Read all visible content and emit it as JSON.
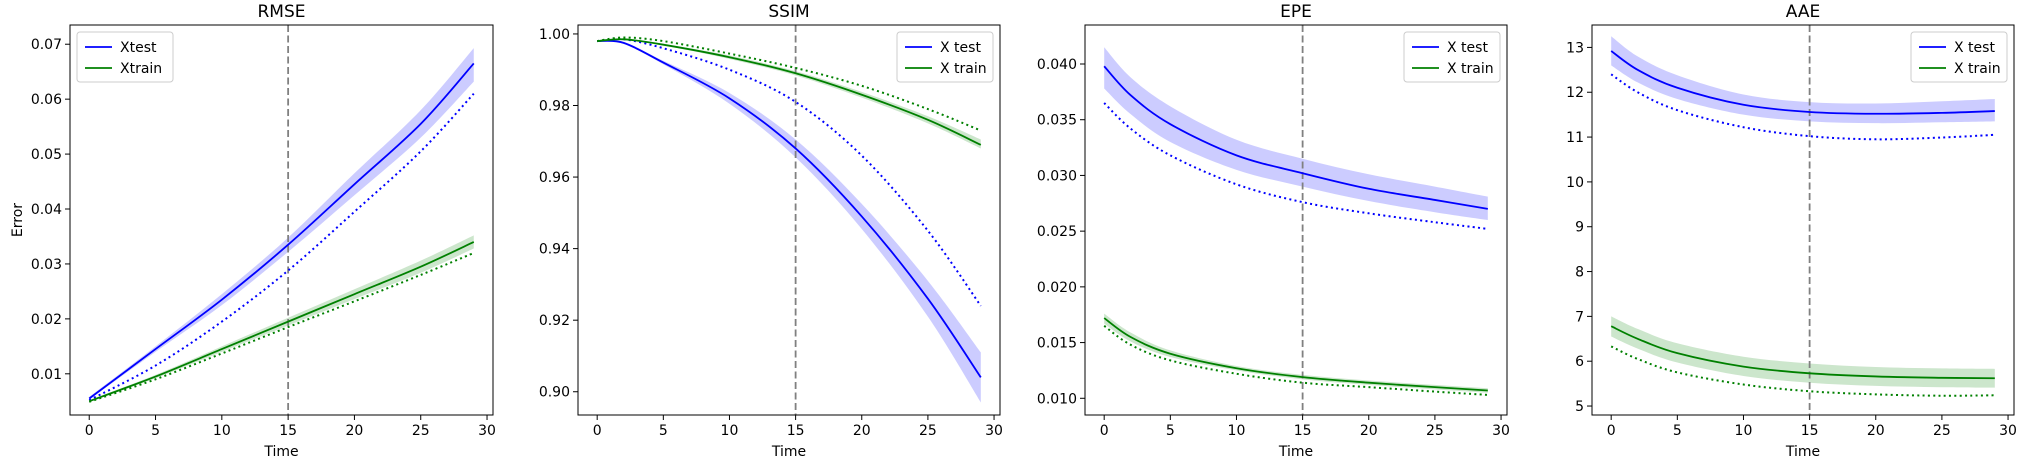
{
  "chart_data": [
    {
      "type": "line",
      "title": "RMSE",
      "xlabel": "Time",
      "ylabel": "Error",
      "xlim": [
        -1.45,
        30.45
      ],
      "ylim": [
        0.0025,
        0.0735
      ],
      "xticks": [
        0,
        5,
        10,
        15,
        20,
        25,
        30
      ],
      "yticks": [
        0.01,
        0.02,
        0.03,
        0.04,
        0.05,
        0.06,
        0.07
      ],
      "ytick_labels": [
        "0.01",
        "0.02",
        "0.03",
        "0.04",
        "0.05",
        "0.06",
        "0.07"
      ],
      "vline_x": 15,
      "legend": {
        "position": "top-left",
        "entries": [
          "Xtest",
          "Xtrain"
        ]
      },
      "x": [
        0,
        5,
        10,
        15,
        20,
        25,
        29
      ],
      "series": [
        {
          "name": "Xtest",
          "color": "#0000ff",
          "style": "solid",
          "values": [
            0.0055,
            0.0145,
            0.0235,
            0.0335,
            0.0445,
            0.0555,
            0.0665
          ],
          "band_lower": [
            0.0053,
            0.014,
            0.0225,
            0.0322,
            0.0425,
            0.053,
            0.0632
          ],
          "band_upper": [
            0.0058,
            0.015,
            0.0245,
            0.0348,
            0.0465,
            0.058,
            0.0693
          ]
        },
        {
          "name": "Xtest (dotted)",
          "color": "#0000ff",
          "style": "dotted",
          "values": [
            0.0052,
            0.0115,
            0.0195,
            0.0288,
            0.0395,
            0.0505,
            0.061
          ]
        },
        {
          "name": "Xtrain",
          "color": "#008000",
          "style": "solid",
          "values": [
            0.005,
            0.0095,
            0.0145,
            0.0195,
            0.0245,
            0.0295,
            0.034
          ],
          "band_lower": [
            0.0049,
            0.0092,
            0.014,
            0.0188,
            0.0236,
            0.0284,
            0.0328
          ],
          "band_upper": [
            0.0052,
            0.0098,
            0.015,
            0.0202,
            0.0254,
            0.0306,
            0.0352
          ]
        },
        {
          "name": "Xtrain (dotted)",
          "color": "#008000",
          "style": "dotted",
          "values": [
            0.0049,
            0.009,
            0.0137,
            0.0185,
            0.0232,
            0.028,
            0.032
          ]
        }
      ]
    },
    {
      "type": "line",
      "title": "SSIM",
      "xlabel": "Time",
      "ylabel": "",
      "xlim": [
        -1.45,
        30.45
      ],
      "ylim": [
        0.8935,
        1.0025
      ],
      "xticks": [
        0,
        5,
        10,
        15,
        20,
        25,
        30
      ],
      "yticks": [
        0.9,
        0.92,
        0.94,
        0.96,
        0.98,
        1.0
      ],
      "ytick_labels": [
        "0.90",
        "0.92",
        "0.94",
        "0.96",
        "0.98",
        "1.00"
      ],
      "vline_x": 15,
      "legend": {
        "position": "top-right",
        "entries": [
          "X test",
          "X train"
        ]
      },
      "x": [
        0,
        2,
        5,
        10,
        15,
        20,
        25,
        29
      ],
      "series": [
        {
          "name": "X test",
          "color": "#0000ff",
          "style": "solid",
          "values": [
            0.998,
            0.9975,
            0.992,
            0.982,
            0.968,
            0.949,
            0.926,
            0.904
          ],
          "band_lower": [
            0.998,
            0.9972,
            0.9915,
            0.9805,
            0.9655,
            0.9455,
            0.921,
            0.897
          ],
          "band_upper": [
            0.998,
            0.9978,
            0.9925,
            0.9835,
            0.9705,
            0.9525,
            0.931,
            0.911
          ]
        },
        {
          "name": "X test (dotted)",
          "color": "#0000ff",
          "style": "dotted",
          "values": [
            0.998,
            0.9985,
            0.996,
            0.99,
            0.981,
            0.966,
            0.945,
            0.924
          ]
        },
        {
          "name": "X train",
          "color": "#008000",
          "style": "solid",
          "values": [
            0.998,
            0.9985,
            0.997,
            0.9935,
            0.989,
            0.983,
            0.976,
            0.969
          ],
          "band_lower": [
            0.998,
            0.9984,
            0.9968,
            0.993,
            0.9884,
            0.9822,
            0.975,
            0.968
          ],
          "band_upper": [
            0.998,
            0.9986,
            0.9972,
            0.994,
            0.9896,
            0.9838,
            0.977,
            0.9705
          ]
        },
        {
          "name": "X train (dotted)",
          "color": "#008000",
          "style": "dotted",
          "values": [
            0.998,
            0.999,
            0.998,
            0.9945,
            0.9905,
            0.9855,
            0.979,
            0.973
          ]
        }
      ]
    },
    {
      "type": "line",
      "title": "EPE",
      "xlabel": "Time",
      "ylabel": "",
      "xlim": [
        -1.45,
        30.45
      ],
      "ylim": [
        0.0085,
        0.0435
      ],
      "xticks": [
        0,
        5,
        10,
        15,
        20,
        25,
        30
      ],
      "yticks": [
        0.01,
        0.015,
        0.02,
        0.025,
        0.03,
        0.035,
        0.04
      ],
      "ytick_labels": [
        "0.010",
        "0.015",
        "0.020",
        "0.025",
        "0.030",
        "0.035",
        "0.040"
      ],
      "vline_x": 15,
      "legend": {
        "position": "top-right",
        "entries": [
          "X test",
          "X train"
        ]
      },
      "x": [
        0,
        2,
        5,
        10,
        15,
        20,
        25,
        29
      ],
      "series": [
        {
          "name": "X test",
          "color": "#0000ff",
          "style": "solid",
          "values": [
            0.0398,
            0.0372,
            0.0346,
            0.0318,
            0.0302,
            0.0288,
            0.0278,
            0.027
          ],
          "band_lower": [
            0.0378,
            0.0355,
            0.033,
            0.0305,
            0.029,
            0.0277,
            0.0267,
            0.026
          ],
          "band_upper": [
            0.0415,
            0.0388,
            0.0362,
            0.0332,
            0.0315,
            0.0301,
            0.029,
            0.0281
          ]
        },
        {
          "name": "X test (dotted)",
          "color": "#0000ff",
          "style": "dotted",
          "values": [
            0.0365,
            0.0342,
            0.0318,
            0.0292,
            0.0276,
            0.0266,
            0.0258,
            0.0252
          ]
        },
        {
          "name": "X train",
          "color": "#008000",
          "style": "solid",
          "values": [
            0.0172,
            0.0155,
            0.014,
            0.0127,
            0.0119,
            0.0114,
            0.011,
            0.0107
          ],
          "band_lower": [
            0.0167,
            0.0151,
            0.0137,
            0.0125,
            0.0117,
            0.0112,
            0.0108,
            0.0105
          ],
          "band_upper": [
            0.0176,
            0.0159,
            0.0143,
            0.0129,
            0.0121,
            0.0116,
            0.0112,
            0.0109
          ]
        },
        {
          "name": "X train (dotted)",
          "color": "#008000",
          "style": "dotted",
          "values": [
            0.0165,
            0.0148,
            0.0134,
            0.0122,
            0.0114,
            0.011,
            0.0106,
            0.0103
          ]
        }
      ]
    },
    {
      "type": "line",
      "title": "AAE",
      "xlabel": "Time",
      "ylabel": "",
      "xlim": [
        -1.45,
        30.45
      ],
      "ylim": [
        4.8,
        13.5
      ],
      "xticks": [
        0,
        5,
        10,
        15,
        20,
        25,
        30
      ],
      "yticks": [
        5,
        6,
        7,
        8,
        9,
        10,
        11,
        12,
        13
      ],
      "ytick_labels": [
        "5",
        "6",
        "7",
        "8",
        "9",
        "10",
        "11",
        "12",
        "13"
      ],
      "vline_x": 15,
      "legend": {
        "position": "top-right",
        "entries": [
          "X test",
          "X train"
        ]
      },
      "x": [
        0,
        2,
        5,
        10,
        15,
        20,
        25,
        29
      ],
      "series": [
        {
          "name": "X test",
          "color": "#0000ff",
          "style": "solid",
          "values": [
            12.92,
            12.5,
            12.1,
            11.72,
            11.56,
            11.52,
            11.54,
            11.58
          ],
          "band_lower": [
            12.6,
            12.22,
            11.85,
            11.5,
            11.35,
            11.31,
            11.33,
            11.35
          ],
          "band_upper": [
            13.25,
            12.8,
            12.38,
            11.95,
            11.78,
            11.75,
            11.8,
            11.85
          ]
        },
        {
          "name": "X test (dotted)",
          "color": "#0000ff",
          "style": "dotted",
          "values": [
            12.4,
            12.0,
            11.6,
            11.22,
            11.02,
            10.95,
            10.99,
            11.05
          ]
        },
        {
          "name": "X train",
          "color": "#008000",
          "style": "solid",
          "values": [
            6.78,
            6.5,
            6.18,
            5.88,
            5.73,
            5.66,
            5.63,
            5.62
          ],
          "band_lower": [
            6.55,
            6.28,
            5.97,
            5.67,
            5.52,
            5.45,
            5.42,
            5.41
          ],
          "band_upper": [
            7.0,
            6.72,
            6.4,
            6.1,
            5.95,
            5.87,
            5.84,
            5.83
          ]
        },
        {
          "name": "X train (dotted)",
          "color": "#008000",
          "style": "dotted",
          "values": [
            6.33,
            6.05,
            5.75,
            5.48,
            5.33,
            5.26,
            5.23,
            5.24
          ]
        }
      ]
    }
  ]
}
